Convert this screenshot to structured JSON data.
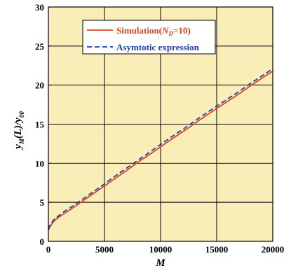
{
  "chart_data": {
    "type": "line",
    "xlabel": "M",
    "ylabel": {
      "base": "y",
      "sub": "M",
      "mid": "(L)/y",
      "sub2": "00"
    },
    "xlim": [
      0,
      20000
    ],
    "ylim": [
      0,
      30
    ],
    "xticks": [
      0,
      5000,
      10000,
      15000,
      20000
    ],
    "yticks": [
      0,
      5,
      10,
      15,
      20,
      25,
      30
    ],
    "grid": true,
    "background": "#f9eeb8",
    "legend": {
      "placement": "top-center",
      "entries": [
        {
          "series": 0,
          "label_parts": [
            "Simulation(",
            "N",
            "D",
            "=10)"
          ]
        },
        {
          "series": 1,
          "label_parts": [
            "Asymtotic expression"
          ]
        }
      ]
    },
    "series": [
      {
        "color": "#e8401c",
        "style": "solid",
        "x": [
          0,
          100,
          250,
          500,
          750,
          1000,
          1500,
          2000,
          2500,
          3000,
          4000,
          5000,
          6000,
          7000,
          8000,
          9000,
          10000,
          11000,
          12000,
          13000,
          14000,
          15000,
          16000,
          17000,
          18000,
          19000,
          20000
        ],
        "y": [
          1.4,
          1.8,
          2.1,
          2.6,
          2.9,
          3.15,
          3.65,
          4.1,
          4.6,
          5.1,
          6.1,
          7.1,
          8.1,
          9.1,
          10.15,
          11.1,
          12.1,
          13.1,
          14.05,
          15.05,
          16.05,
          17.0,
          17.95,
          18.9,
          19.9,
          20.85,
          21.8
        ]
      },
      {
        "color": "#1f3ea8",
        "style": "dashed",
        "x": [
          0,
          100,
          250,
          500,
          750,
          1000,
          1500,
          2000,
          2500,
          3000,
          4000,
          5000,
          6000,
          7000,
          8000,
          9000,
          10000,
          11000,
          12000,
          13000,
          14000,
          15000,
          16000,
          17000,
          18000,
          19000,
          20000
        ],
        "y": [
          1.5,
          1.95,
          2.3,
          2.8,
          3.1,
          3.35,
          3.9,
          4.35,
          4.85,
          5.35,
          6.35,
          7.35,
          8.4,
          9.4,
          10.4,
          11.4,
          12.4,
          13.4,
          14.35,
          15.35,
          16.35,
          17.3,
          18.25,
          19.2,
          20.2,
          21.15,
          22.1
        ]
      }
    ]
  }
}
